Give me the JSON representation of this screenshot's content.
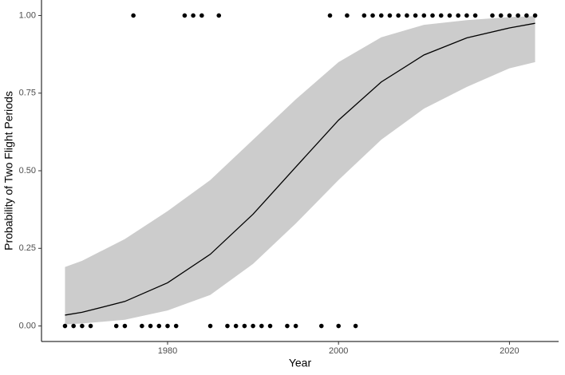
{
  "chart_data": {
    "type": "scatter",
    "x_label": "Year",
    "y_label": "Probability of Two Flight Periods",
    "xlim": [
      1965.25,
      2025.75
    ],
    "ylim": [
      -0.05,
      1.05
    ],
    "xticks": [
      1980,
      2000,
      2020
    ],
    "yticks": [
      {
        "value": 0,
        "label": "0.00"
      },
      {
        "value": 0.25,
        "label": "0.25"
      },
      {
        "value": 0.5,
        "label": "0.50"
      },
      {
        "value": 0.75,
        "label": "0.75"
      },
      {
        "value": 1,
        "label": "1.00"
      }
    ],
    "grid": false,
    "points": {
      "color": "#000000",
      "x": [
        1968,
        1969,
        1970,
        1971,
        1974,
        1975,
        1976,
        1977,
        1978,
        1979,
        1980,
        1981,
        1982,
        1983,
        1984,
        1985,
        1986,
        1987,
        1988,
        1989,
        1990,
        1991,
        1992,
        1994,
        1995,
        1998,
        1999,
        2000,
        2001,
        2002,
        2003,
        2004,
        2005,
        2006,
        2007,
        2008,
        2009,
        2010,
        2011,
        2012,
        2013,
        2014,
        2015,
        2016,
        2018,
        2019,
        2020,
        2021,
        2022,
        2023
      ],
      "values": [
        0,
        0,
        0,
        0,
        0,
        0,
        1,
        0,
        0,
        0,
        0,
        0,
        1,
        1,
        1,
        0,
        1,
        0,
        0,
        0,
        0,
        0,
        0,
        0,
        0,
        0,
        1,
        0,
        1,
        0,
        1,
        1,
        1,
        1,
        1,
        1,
        1,
        1,
        1,
        1,
        1,
        1,
        1,
        1,
        1,
        1,
        1,
        1,
        1,
        1
      ]
    },
    "fit": {
      "color": "#000000",
      "band_color": "#cccccc",
      "x": [
        1968,
        1970,
        1975,
        1980,
        1985,
        1990,
        1995,
        2000,
        2005,
        2010,
        2015,
        2020,
        2023
      ],
      "values": [
        0.035,
        0.044,
        0.079,
        0.139,
        0.231,
        0.36,
        0.512,
        0.663,
        0.786,
        0.873,
        0.928,
        0.96,
        0.975
      ],
      "lower": [
        0.005,
        0.008,
        0.02,
        0.05,
        0.1,
        0.2,
        0.33,
        0.47,
        0.6,
        0.7,
        0.77,
        0.83,
        0.85
      ],
      "upper": [
        0.19,
        0.21,
        0.28,
        0.37,
        0.47,
        0.6,
        0.73,
        0.85,
        0.93,
        0.97,
        0.985,
        0.995,
        0.998
      ]
    }
  }
}
